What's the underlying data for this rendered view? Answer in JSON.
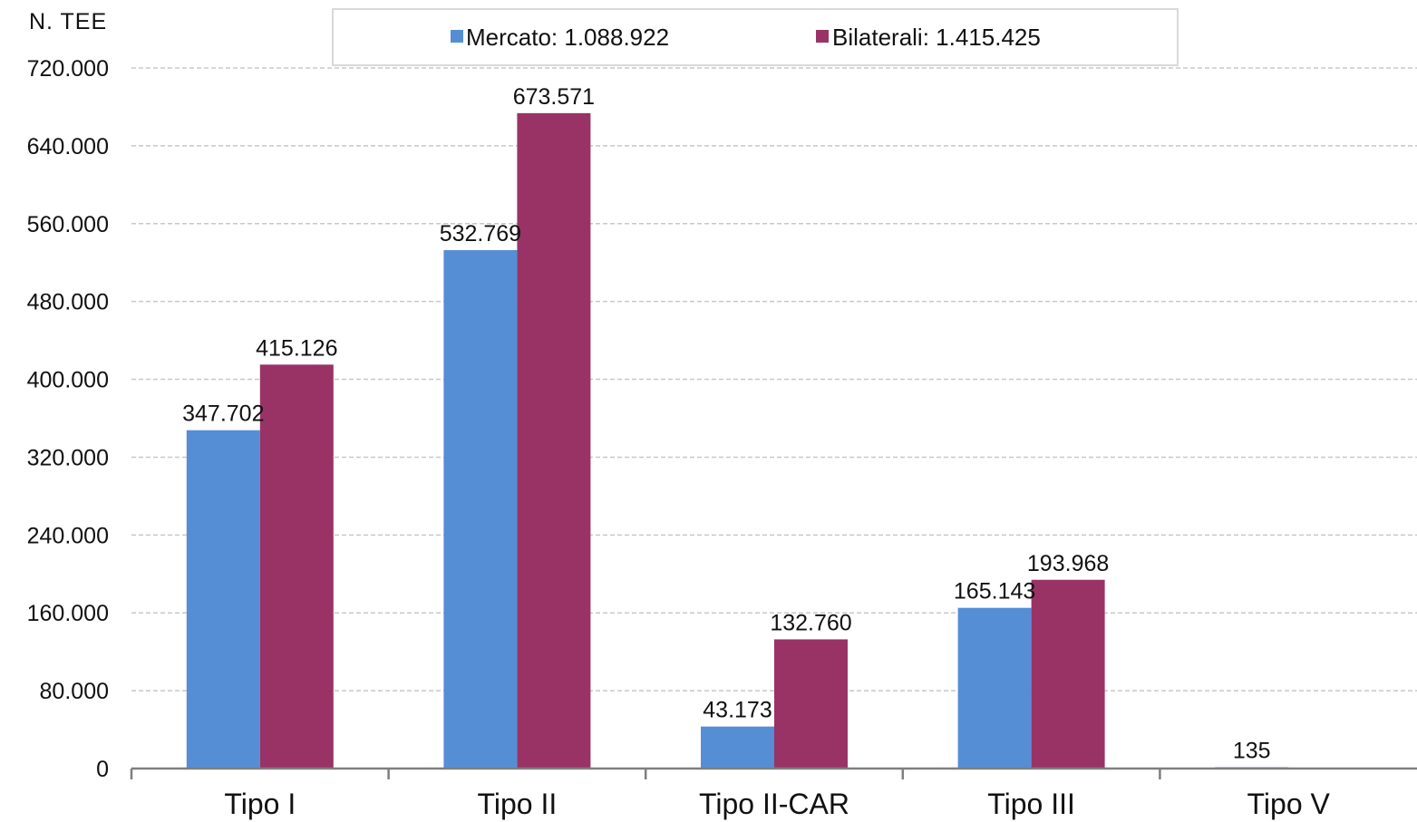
{
  "chart_data": {
    "type": "bar",
    "ylabel": "N. TEE",
    "categories": [
      "Tipo I",
      "Tipo II",
      "Tipo II-CAR",
      "Tipo III",
      "Tipo V"
    ],
    "series": [
      {
        "name": "Mercato",
        "legend_value": "1.088.922",
        "color": "#558ED5",
        "values": [
          347702,
          532769,
          43173,
          165143,
          135
        ],
        "labels": [
          "347.702",
          "532.769",
          "43.173",
          "165.143",
          "135"
        ]
      },
      {
        "name": "Bilaterali",
        "legend_value": "1.415.425",
        "color": "#993366",
        "values": [
          415126,
          673571,
          132760,
          193968,
          0
        ],
        "labels": [
          "415.126",
          "673.571",
          "132.760",
          "193.968",
          ""
        ]
      }
    ],
    "ylim": [
      0,
      720000
    ],
    "yticks": [
      0,
      80000,
      160000,
      240000,
      320000,
      400000,
      480000,
      560000,
      640000,
      720000
    ],
    "ytick_labels": [
      "0",
      "80.000",
      "160.000",
      "240.000",
      "320.000",
      "400.000",
      "480.000",
      "560.000",
      "640.000",
      "720.000"
    ],
    "grid": true,
    "legend_position": "top-center"
  }
}
